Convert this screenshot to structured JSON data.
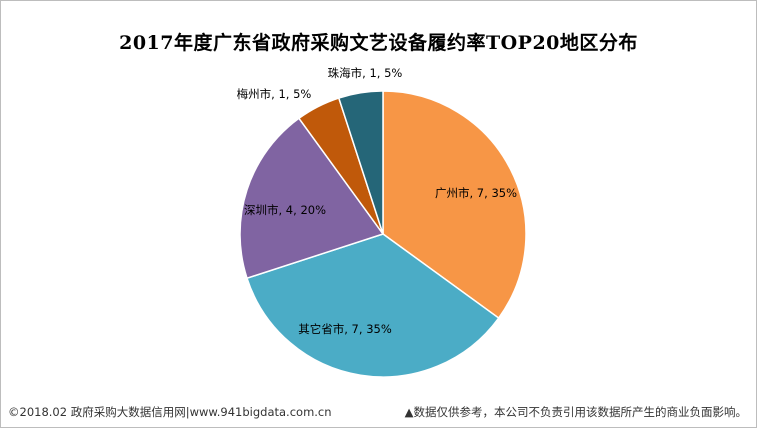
{
  "chart_data": {
    "type": "pie",
    "title": "2017年度广东省政府采购文艺设备履约率TOP20地区分布",
    "slices": [
      {
        "label": "广州市",
        "value": 7,
        "percent": "35%",
        "color": "#F79646"
      },
      {
        "label": "其它省市",
        "value": 7,
        "percent": "35%",
        "color": "#4BACC6"
      },
      {
        "label": "深圳市",
        "value": 4,
        "percent": "20%",
        "color": "#8064A2"
      },
      {
        "label": "梅州市",
        "value": 1,
        "percent": "5%",
        "color": "#C0590A"
      },
      {
        "label": "珠海市",
        "value": 1,
        "percent": "5%",
        "color": "#256678"
      }
    ]
  },
  "footer": {
    "left": "©2018.02 政府采购大数据信用网|www.941bigdata.com.cn",
    "right": "▲数据仅供参考，本公司不负责引用该数据所产生的商业负面影响。"
  }
}
